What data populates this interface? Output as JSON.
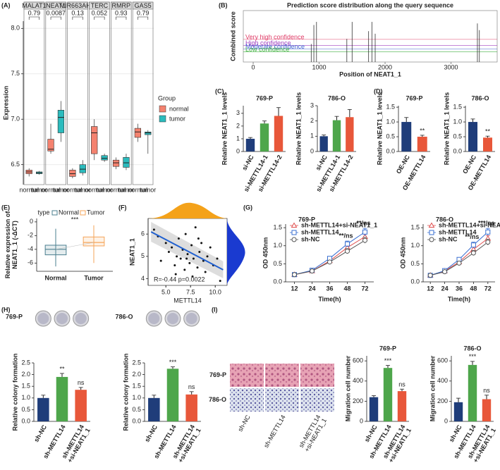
{
  "chart_data": [
    {
      "type": "box",
      "panel_label": "(A)",
      "ylabel": "Expression",
      "ylim": [
        6.28,
        8.08
      ],
      "yticks": [
        6.5,
        {
          "value": 7.0,
          "label": "7.0"
        },
        7.5,
        {
          "value": 8.0,
          "label": "8.0"
        }
      ],
      "legend_title": "Group",
      "groups": [
        {
          "name": "normal",
          "color": "#f4826f"
        },
        {
          "name": "tumor",
          "color": "#2bbbbd"
        }
      ],
      "facets": [
        {
          "title": "MALAT1",
          "p": 0.79,
          "boxes": [
            [
              6.37,
              6.4,
              6.42,
              6.44,
              6.46
            ],
            [
              6.39,
              6.4,
              6.41,
              6.42,
              6.43
            ]
          ]
        },
        {
          "title": "NEAT1",
          "p": 0.0087,
          "boxes": [
            [
              6.62,
              6.65,
              6.67,
              6.78,
              6.95
            ],
            [
              6.75,
              6.85,
              7.02,
              7.1,
              7.2
            ]
          ]
        },
        {
          "title": "MIR663AHG",
          "p": 0.13,
          "boxes": [
            [
              6.35,
              6.37,
              6.4,
              6.44,
              6.46
            ],
            [
              6.38,
              6.41,
              6.45,
              6.5,
              6.55
            ]
          ]
        },
        {
          "title": "TERC",
          "p": 0.052,
          "boxes": [
            [
              6.55,
              6.62,
              6.85,
              6.92,
              7.0
            ],
            [
              6.53,
              6.55,
              6.57,
              6.6,
              6.62
            ]
          ]
        },
        {
          "title": "RMRP",
          "p": 0.93,
          "boxes": [
            [
              6.45,
              6.48,
              6.52,
              6.55,
              6.58
            ],
            [
              6.44,
              6.47,
              6.52,
              6.58,
              6.62
            ]
          ]
        },
        {
          "title": "GAS5",
          "p": 0.79,
          "boxes": [
            [
              6.75,
              6.8,
              6.86,
              6.9,
              6.95
            ],
            [
              6.62,
              6.83,
              6.85,
              6.86,
              6.88
            ]
          ]
        }
      ]
    },
    {
      "type": "spike",
      "panel_label": "(B)",
      "title": "Prediction score distribution along the query sequence",
      "xlabel": "Position of NEAT1_1",
      "ylabel": "Combined score",
      "xlim": [
        -150,
        3700
      ],
      "xticks": [
        0,
        1000,
        2000,
        3000
      ],
      "ylim": [
        0,
        1
      ],
      "x": [
        880,
        920,
        960,
        1420,
        1500,
        1750,
        1800,
        1850,
        3400,
        3430
      ],
      "values": [
        0.35,
        0.72,
        0.78,
        0.45,
        0.78,
        0.6,
        0.78,
        0.55,
        0.75,
        0.62
      ],
      "thresholds": [
        {
          "label": "Very high confidence",
          "value": 0.44,
          "color": "#e0406a"
        },
        {
          "label": "High confidence",
          "value": 0.32,
          "color": "#a040c0"
        },
        {
          "label": "Moderate confidence",
          "value": 0.25,
          "color": "#4060d0"
        },
        {
          "label": "Low confidence",
          "value": 0.2,
          "color": "#40b040"
        }
      ]
    },
    {
      "type": "bar",
      "panel_label": "(C)",
      "title": "769-P",
      "ylabel": "Relative NEAT1_1 levels",
      "ylim": [
        0,
        3.6
      ],
      "yticks": [
        0,
        1,
        2,
        3
      ],
      "categories": [
        "si-NC",
        "si-METTL14-1",
        "si-METTL14-2"
      ],
      "values": [
        1.0,
        2.2,
        2.8
      ],
      "errors": [
        0.1,
        0.2,
        0.65
      ],
      "colors": [
        "#1f3d7a",
        "#4ea64b",
        "#e8573a"
      ]
    },
    {
      "type": "bar",
      "title": "786-O",
      "ylabel": "Relative NEAT1_1 levels",
      "ylim": [
        0,
        3
      ],
      "yticks": [
        0,
        1,
        2,
        3
      ],
      "categories": [
        "si-NC",
        "si-METTL14-1",
        "si-METTL14-2"
      ],
      "values": [
        1.0,
        2.05,
        2.25
      ],
      "errors": [
        0.08,
        0.25,
        0.5
      ],
      "colors": [
        "#1f3d7a",
        "#4ea64b",
        "#e8573a"
      ]
    },
    {
      "type": "bar",
      "panel_label": "(D)",
      "title": "769-P",
      "ylabel": "Relative NEAT1_1 levels",
      "ylim": [
        0,
        1.55
      ],
      "yticks": [
        {
          "value": 0,
          "label": "0.0"
        },
        {
          "value": 0.5,
          "label": "0.5"
        },
        {
          "value": 1,
          "label": "1.0"
        },
        {
          "value": 1.5,
          "label": "1.5"
        }
      ],
      "categories": [
        "OE-NC",
        "OE-METTL14"
      ],
      "values": [
        1.0,
        0.5
      ],
      "errors": [
        0.15,
        0.05
      ],
      "annotations": [
        null,
        "**"
      ],
      "colors": [
        "#1f3d7a",
        "#e8573a"
      ]
    },
    {
      "type": "bar",
      "title": "786-O",
      "ylabel": "Relative NEAT1_1 levels",
      "ylim": [
        0,
        1.55
      ],
      "yticks": [
        {
          "value": 0,
          "label": "0.0"
        },
        {
          "value": 0.5,
          "label": "0.5"
        },
        {
          "value": 1,
          "label": "1.0"
        },
        {
          "value": 1.5,
          "label": "1.5"
        }
      ],
      "categories": [
        "OE-NC",
        "OE-METTL14"
      ],
      "values": [
        1.0,
        0.47
      ],
      "errors": [
        0.1,
        0.05
      ],
      "annotations": [
        null,
        "**"
      ],
      "colors": [
        "#1f3d7a",
        "#e8573a"
      ]
    },
    {
      "type": "paired_box",
      "panel_label": "(E)",
      "ylabel": "Relative expression of\nNEAT1_1 (-ΔCT)",
      "ylim": [
        -7.2,
        0.5
      ],
      "yticks": [
        -6,
        -4,
        -2,
        0
      ],
      "legend_title": "type",
      "annotation": "***",
      "categories": [
        "Normal",
        "Tumor"
      ],
      "colors": [
        "#4b7f8f",
        "#f5a55a"
      ],
      "boxes": [
        [
          -6.5,
          -4.8,
          -4.0,
          -3.4,
          -1.0
        ],
        [
          -6.0,
          -3.5,
          -3.0,
          -2.2,
          -0.5
        ]
      ]
    },
    {
      "type": "scatter",
      "panel_label": "(F)",
      "xlabel": "METTL14",
      "ylabel": "NEAT1_1",
      "annotation": "R=-0.44 p=0.0022",
      "xlim": [
        3.2,
        11.2
      ],
      "xticks": [
        {
          "value": 5,
          "label": "5.0"
        },
        7.5,
        {
          "value": 10,
          "label": "10.0"
        }
      ],
      "ylim": [
        3.7,
        6.7
      ],
      "yticks": [
        4,
        5,
        6
      ],
      "x": [
        3.8,
        4.2,
        4.5,
        5.0,
        5.3,
        5.6,
        5.9,
        6.1,
        6.3,
        6.5,
        6.7,
        6.9,
        7.0,
        7.2,
        7.4,
        7.6,
        7.8,
        8.0,
        8.2,
        8.4,
        8.6,
        8.8,
        9.0,
        9.2,
        9.5,
        9.8,
        10.2,
        10.5,
        6.0,
        7.1,
        8.3,
        7.7
      ],
      "values": [
        6.2,
        5.9,
        4.8,
        5.6,
        5.2,
        5.4,
        4.6,
        5.0,
        5.8,
        4.9,
        5.3,
        4.4,
        6.0,
        5.1,
        4.7,
        5.5,
        4.9,
        6.3,
        4.5,
        5.2,
        5.6,
        4.8,
        4.3,
        5.0,
        5.4,
        4.6,
        4.9,
        3.9,
        4.2,
        4.9,
        5.8,
        4.1
      ],
      "fit": {
        "x": [
          3.5,
          10.8
        ],
        "values": [
          6.1,
          4.4
        ],
        "color": "#2060d0"
      }
    },
    {
      "type": "line",
      "panel_label": "(G)",
      "title": "769-P",
      "xlabel": "Time(h)",
      "ylabel": "OD 450nm",
      "ylim": [
        0,
        1.6
      ],
      "yticks": [
        {
          "value": 0,
          "label": "0.0"
        },
        {
          "value": 0.5,
          "label": "0.5"
        },
        {
          "value": 1,
          "label": "1.0"
        },
        {
          "value": 1.5,
          "label": "1.5"
        }
      ],
      "categories": [
        "12",
        "24",
        "36",
        "48",
        "72"
      ],
      "annotations": [
        null,
        null,
        null,
        "**/ns",
        "**/ns"
      ],
      "series": [
        {
          "name": "sh-METTL14+si-NEAT1_1",
          "color": "#e05050",
          "marker": "triangle",
          "values": [
            0.2,
            0.3,
            0.58,
            0.95,
            1.25
          ],
          "errors": [
            0.02,
            0.03,
            0.05,
            0.08,
            0.08
          ]
        },
        {
          "name": "sh-METTL14",
          "color": "#3a6fd0",
          "marker": "square",
          "values": [
            0.2,
            0.32,
            0.65,
            1.05,
            1.38
          ],
          "errors": [
            0.02,
            0.03,
            0.05,
            0.08,
            0.1
          ]
        },
        {
          "name": "sh-NC",
          "color": "#555555",
          "marker": "circle",
          "values": [
            0.2,
            0.3,
            0.55,
            0.85,
            1.15
          ],
          "errors": [
            0.02,
            0.03,
            0.04,
            0.07,
            0.08
          ]
        }
      ]
    },
    {
      "type": "line",
      "title": "786-O",
      "xlabel": "Time(h)",
      "ylabel": "OD 450nm",
      "ylim": [
        0,
        1.6
      ],
      "yticks": [
        {
          "value": 0,
          "label": "0.0"
        },
        {
          "value": 0.5,
          "label": "0.5"
        },
        {
          "value": 1,
          "label": "1.0"
        },
        {
          "value": 1.5,
          "label": "1.5"
        }
      ],
      "categories": [
        "12",
        "24",
        "36",
        "48",
        "72"
      ],
      "annotations": [
        null,
        null,
        null,
        "**/ns",
        "***/ns"
      ],
      "series": [
        {
          "name": "sh-METTL14+si-NEAT1_1",
          "color": "#e05050",
          "marker": "triangle",
          "values": [
            0.18,
            0.3,
            0.55,
            0.9,
            1.2
          ],
          "errors": [
            0.02,
            0.03,
            0.05,
            0.07,
            0.08
          ]
        },
        {
          "name": "sh-METTL14",
          "color": "#3a6fd0",
          "marker": "square",
          "values": [
            0.18,
            0.31,
            0.62,
            1.02,
            1.38
          ],
          "errors": [
            0.02,
            0.03,
            0.05,
            0.08,
            0.1
          ]
        },
        {
          "name": "sh-NC",
          "color": "#555555",
          "marker": "circle",
          "values": [
            0.18,
            0.28,
            0.52,
            0.8,
            1.1
          ],
          "errors": [
            0.02,
            0.03,
            0.04,
            0.07,
            0.08
          ]
        }
      ]
    },
    {
      "type": "bar",
      "panel_label": "(H)",
      "title": "769-P",
      "ylabel": "Relative colony formation",
      "ylim": [
        0,
        2.5
      ],
      "yticks": [
        {
          "value": 0,
          "label": "0.0"
        },
        {
          "value": 0.5,
          "label": "0.5"
        },
        {
          "value": 1,
          "label": "1.0"
        },
        {
          "value": 1.5,
          "label": "1.5"
        },
        {
          "value": 2,
          "label": "2.0"
        },
        {
          "value": 2.5,
          "label": "2.5"
        }
      ],
      "categories": [
        "sh-NC",
        "sh-METTL14",
        "sh-METTL14\n+si-NEAT1_1"
      ],
      "values": [
        1.0,
        1.9,
        1.35
      ],
      "errors": [
        0.12,
        0.15,
        0.1
      ],
      "annotations": [
        null,
        "**",
        "ns"
      ],
      "colors": [
        "#1f3d7a",
        "#4ea64b",
        "#e8573a"
      ]
    },
    {
      "type": "bar",
      "title": "786-O",
      "ylabel": "Relative colony formation",
      "ylim": [
        0,
        2.5
      ],
      "yticks": [
        {
          "value": 0,
          "label": "0.0"
        },
        {
          "value": 0.5,
          "label": "0.5"
        },
        {
          "value": 1,
          "label": "1.0"
        },
        {
          "value": 1.5,
          "label": "1.5"
        },
        {
          "value": 2,
          "label": "2.0"
        },
        {
          "value": 2.5,
          "label": "2.5"
        }
      ],
      "categories": [
        "sh-NC",
        "sh-METTL14",
        "sh-METTL14\n+si-NEAT1_1"
      ],
      "values": [
        1.0,
        2.25,
        1.15
      ],
      "errors": [
        0.12,
        0.08,
        0.12
      ],
      "annotations": [
        null,
        "***",
        "ns"
      ],
      "colors": [
        "#1f3d7a",
        "#4ea64b",
        "#e8573a"
      ]
    },
    {
      "type": "images",
      "panel_label": "(I)",
      "row_labels": [
        "769-P",
        "786-O"
      ],
      "col_labels": [
        "sh-NC",
        "sh-METTL14",
        "sh-METTL14\n+si-NEAT1_1"
      ]
    },
    {
      "type": "bar",
      "title": "769-P",
      "ylabel": "Migration cell number",
      "ylim": [
        0,
        650
      ],
      "yticks": [
        0,
        200,
        400,
        600
      ],
      "categories": [
        "sh-NC",
        "sh-METTL14",
        "sh-METTL14\n+si-NEAT1_1"
      ],
      "values": [
        240,
        530,
        300
      ],
      "errors": [
        15,
        25,
        20
      ],
      "annotations": [
        null,
        "***",
        "ns"
      ],
      "colors": [
        "#1f3d7a",
        "#4ea64b",
        "#e8573a"
      ]
    },
    {
      "type": "bar",
      "title": "786-O",
      "ylabel": "Migration cell number",
      "ylim": [
        0,
        650
      ],
      "yticks": [
        0,
        200,
        400,
        600
      ],
      "categories": [
        "sh-NC",
        "sh-METTL14",
        "sh-METTL14\n+si-NEAT1_1"
      ],
      "values": [
        190,
        560,
        220
      ],
      "errors": [
        40,
        35,
        40
      ],
      "annotations": [
        null,
        "***",
        "ns"
      ],
      "colors": [
        "#1f3d7a",
        "#4ea64b",
        "#e8573a"
      ]
    }
  ]
}
